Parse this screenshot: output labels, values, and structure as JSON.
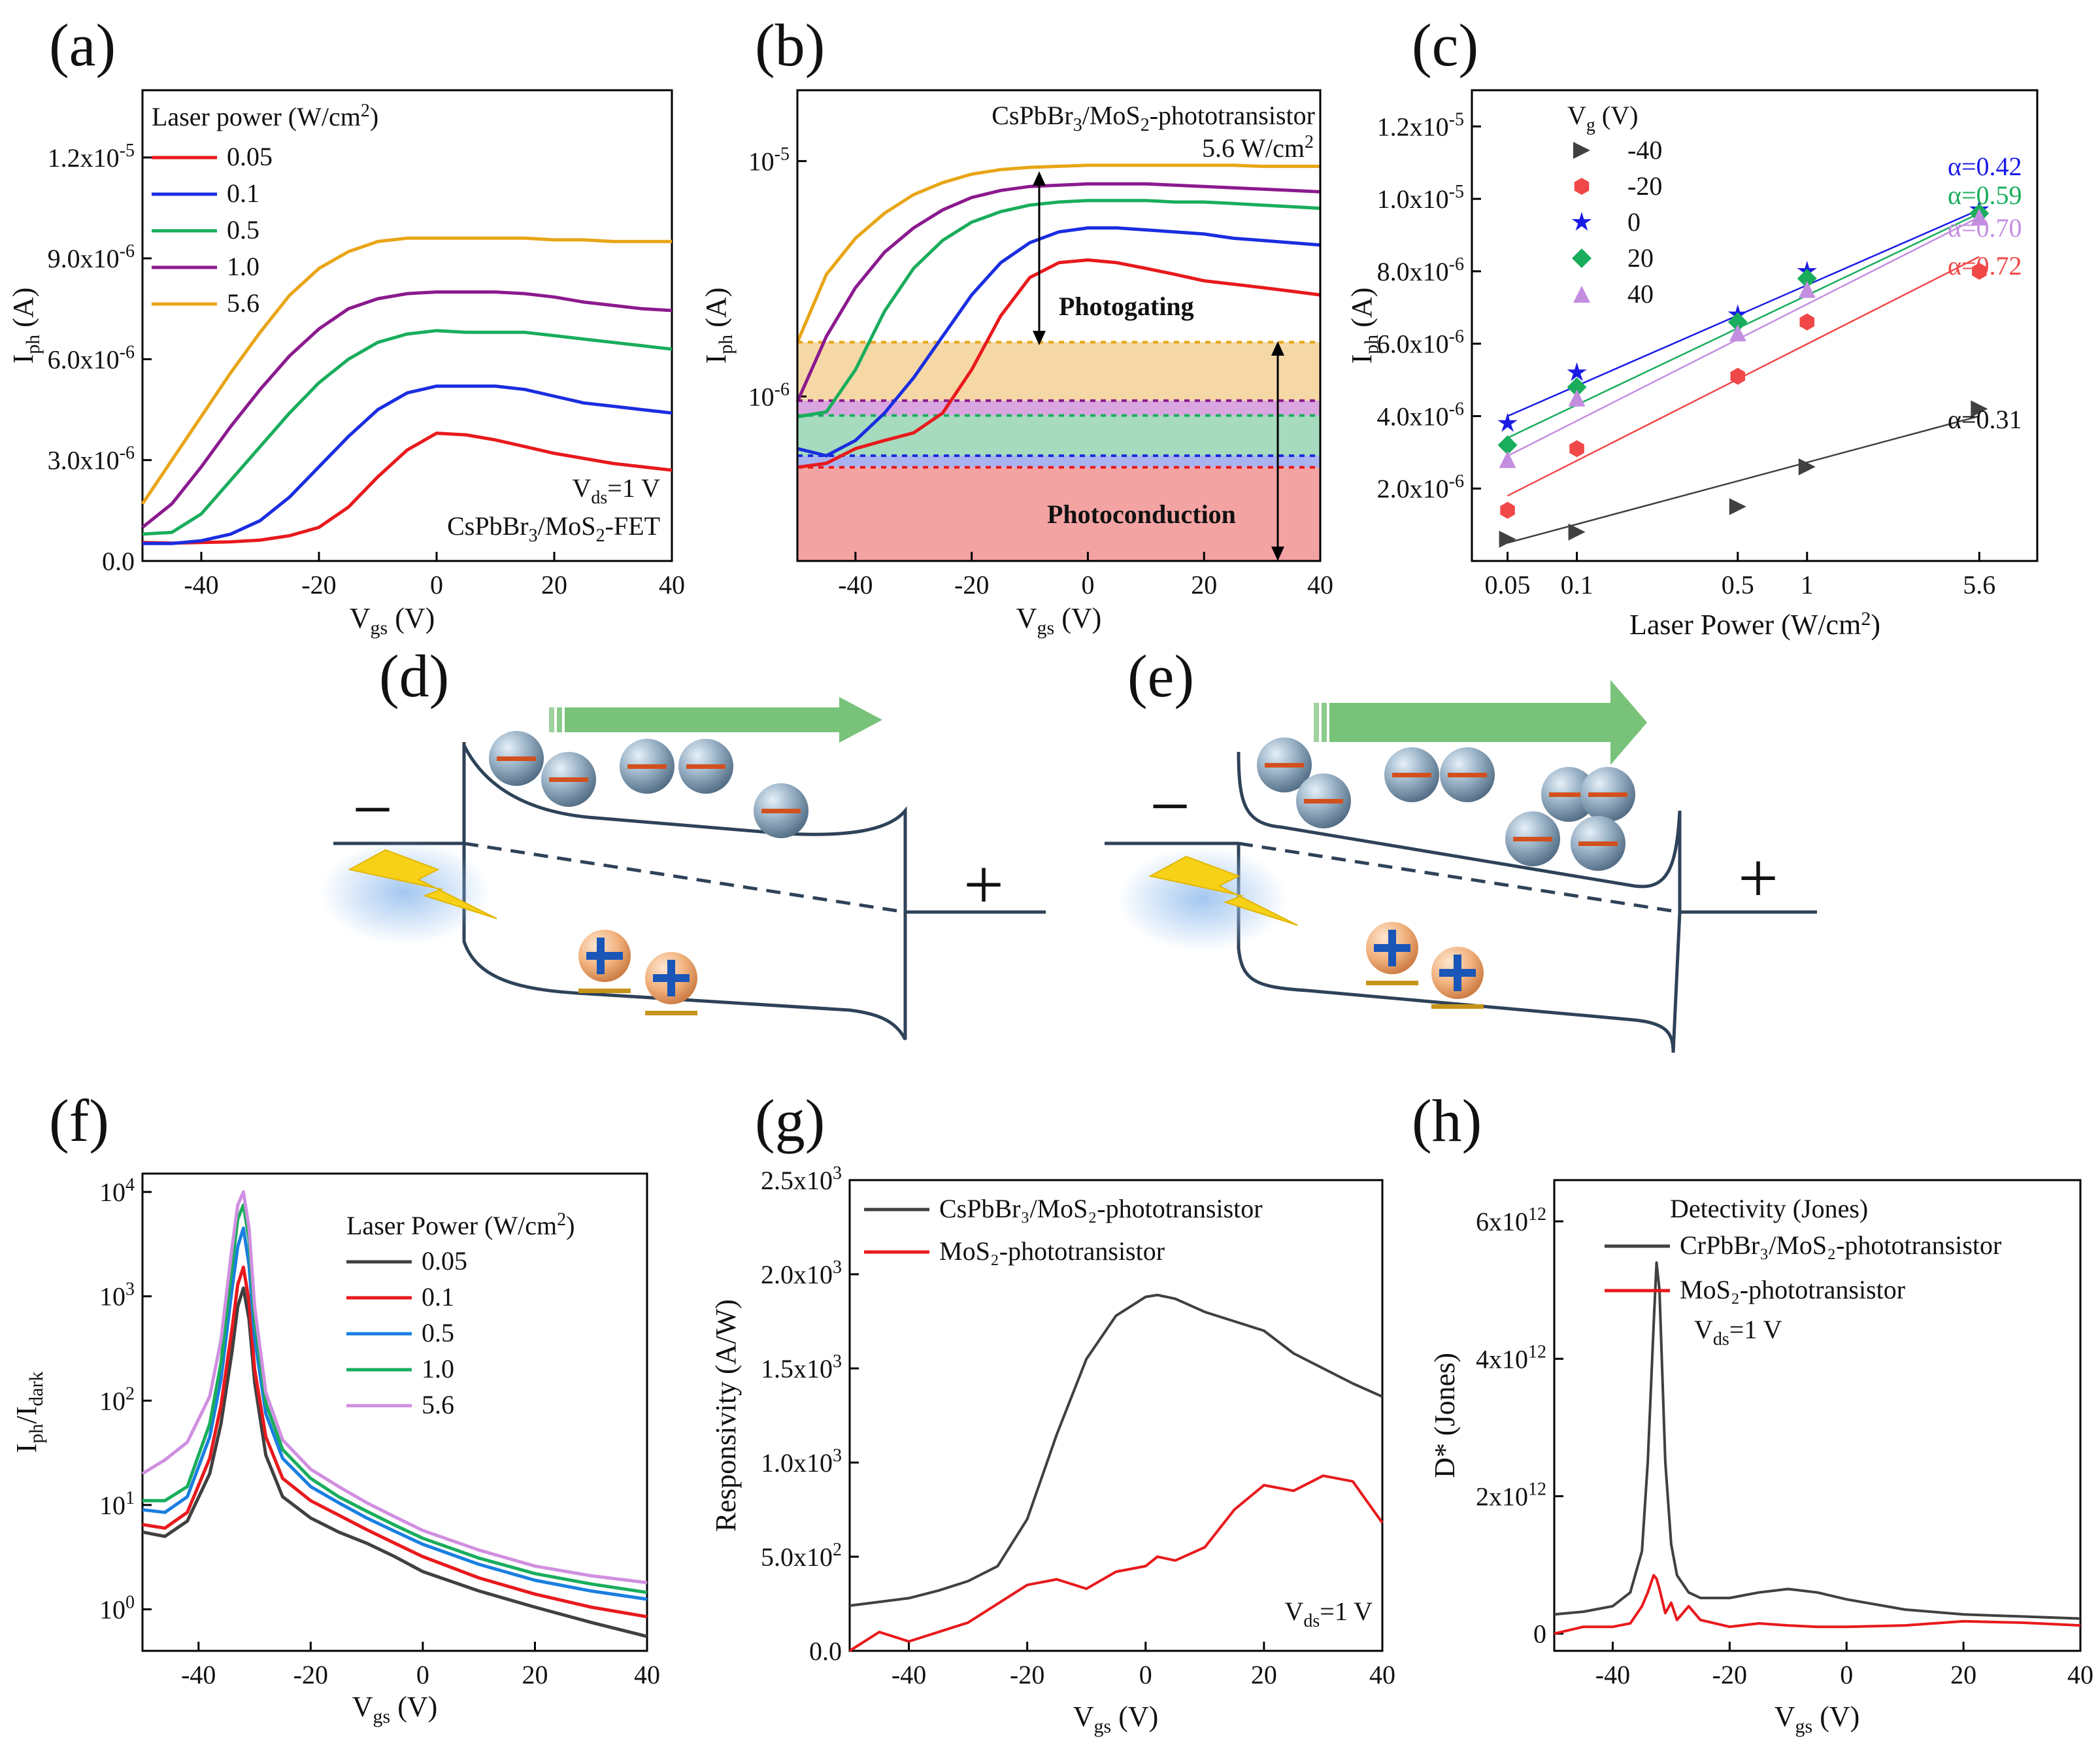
{
  "figure": {
    "panel_labels": [
      "(a)",
      "(b)",
      "(c)",
      "(d)",
      "(e)",
      "(f)",
      "(g)",
      "(h)"
    ]
  },
  "chart_data": [
    {
      "id": "a",
      "type": "line",
      "title": "",
      "xlabel": "Vgs (V)",
      "ylabel": "Iph (A)",
      "xlim": [
        -50,
        40
      ],
      "ylim": [
        0,
        1.4e-05
      ],
      "x_ticks": [
        "-40",
        "-20",
        "0",
        "20",
        "40"
      ],
      "y_ticks": [
        "0.0",
        "3.0x10-6",
        "6.0x10-6",
        "9.0x10-6",
        "1.2x10-5"
      ],
      "legend_title": "Laser power (W/cm2)",
      "legend_position": "top-left",
      "annotations": [
        "Vds=1 V",
        "CsPbBr3/MoS2-FET"
      ],
      "x": [
        -50,
        -45,
        -40,
        -35,
        -30,
        -25,
        -20,
        -15,
        -10,
        -5,
        0,
        5,
        10,
        15,
        20,
        25,
        30,
        35,
        40
      ],
      "series": [
        {
          "name": "0.05",
          "color": "#e8191c",
          "values": [
            5.5e-07,
            5.3e-07,
            5.5e-07,
            5.7e-07,
            6.2e-07,
            7.5e-07,
            1e-06,
            1.6e-06,
            2.5e-06,
            3.3e-06,
            3.8e-06,
            3.75e-06,
            3.6e-06,
            3.4e-06,
            3.2e-06,
            3.05e-06,
            2.9e-06,
            2.8e-06,
            2.7e-06
          ]
        },
        {
          "name": "0.1",
          "color": "#1a2de0",
          "values": [
            5.2e-07,
            5.2e-07,
            6e-07,
            8e-07,
            1.2e-06,
            1.9e-06,
            2.8e-06,
            3.7e-06,
            4.5e-06,
            5e-06,
            5.2e-06,
            5.2e-06,
            5.2e-06,
            5.1e-06,
            4.9e-06,
            4.7e-06,
            4.6e-06,
            4.5e-06,
            4.4e-06
          ]
        },
        {
          "name": "0.5",
          "color": "#19ad5c",
          "values": [
            8e-07,
            8.5e-07,
            1.4e-06,
            2.4e-06,
            3.4e-06,
            4.4e-06,
            5.3e-06,
            6e-06,
            6.5e-06,
            6.75e-06,
            6.85e-06,
            6.8e-06,
            6.8e-06,
            6.8e-06,
            6.7e-06,
            6.6e-06,
            6.5e-06,
            6.4e-06,
            6.3e-06
          ]
        },
        {
          "name": "1.0",
          "color": "#8b1a8e",
          "values": [
            1e-06,
            1.7e-06,
            2.8e-06,
            4e-06,
            5.1e-06,
            6.1e-06,
            6.9e-06,
            7.5e-06,
            7.8e-06,
            7.95e-06,
            8e-06,
            8e-06,
            8e-06,
            7.95e-06,
            7.85e-06,
            7.7e-06,
            7.6e-06,
            7.5e-06,
            7.45e-06
          ]
        },
        {
          "name": "5.6",
          "color": "#e8a516",
          "values": [
            1.7e-06,
            3e-06,
            4.3e-06,
            5.6e-06,
            6.8e-06,
            7.9e-06,
            8.7e-06,
            9.2e-06,
            9.5e-06,
            9.6e-06,
            9.6e-06,
            9.6e-06,
            9.6e-06,
            9.6e-06,
            9.55e-06,
            9.55e-06,
            9.5e-06,
            9.5e-06,
            9.5e-06
          ]
        }
      ]
    },
    {
      "id": "b",
      "type": "line",
      "title": "",
      "xlabel": "Vgs (V)",
      "ylabel": "Iph (A)",
      "yscale": "log",
      "xlim": [
        -50,
        40
      ],
      "ylim": [
        2e-07,
        2e-05
      ],
      "x_ticks": [
        "-40",
        "-20",
        "0",
        "20",
        "40"
      ],
      "y_ticks": [
        "10-6",
        "10-5"
      ],
      "annotations": [
        "CsPbBr3/MoS2-phototransistor",
        "5.6 W/cm2",
        "Photogating",
        "Photoconduction"
      ],
      "x": [
        -50,
        -45,
        -40,
        -35,
        -30,
        -25,
        -20,
        -15,
        -10,
        -5,
        0,
        5,
        10,
        15,
        20,
        25,
        30,
        35,
        40
      ],
      "series": [
        {
          "name": "0.05",
          "color": "#e8191c",
          "values": [
            5e-07,
            5.2e-07,
            6e-07,
            6.5e-07,
            7e-07,
            8.5e-07,
            1.3e-06,
            2.2e-06,
            3.2e-06,
            3.7e-06,
            3.8e-06,
            3.7e-06,
            3.5e-06,
            3.3e-06,
            3.1e-06,
            3e-06,
            2.9e-06,
            2.8e-06,
            2.7e-06
          ]
        },
        {
          "name": "0.1",
          "color": "#1a2de0",
          "values": [
            6e-07,
            5.6e-07,
            6.5e-07,
            8.5e-07,
            1.2e-06,
            1.8e-06,
            2.7e-06,
            3.7e-06,
            4.5e-06,
            5e-06,
            5.2e-06,
            5.2e-06,
            5.1e-06,
            5e-06,
            4.9e-06,
            4.7e-06,
            4.6e-06,
            4.5e-06,
            4.4e-06
          ]
        },
        {
          "name": "0.5",
          "color": "#19ad5c",
          "values": [
            8.2e-07,
            8.6e-07,
            1.3e-06,
            2.3e-06,
            3.5e-06,
            4.6e-06,
            5.5e-06,
            6.1e-06,
            6.5e-06,
            6.7e-06,
            6.8e-06,
            6.8e-06,
            6.8e-06,
            6.7e-06,
            6.7e-06,
            6.6e-06,
            6.5e-06,
            6.4e-06,
            6.3e-06
          ]
        },
        {
          "name": "1.0",
          "color": "#8b1a8e",
          "values": [
            9.5e-07,
            1.8e-06,
            2.9e-06,
            4.1e-06,
            5.2e-06,
            6.2e-06,
            7e-06,
            7.5e-06,
            7.8e-06,
            7.9e-06,
            8e-06,
            8e-06,
            8e-06,
            7.9e-06,
            7.8e-06,
            7.7e-06,
            7.6e-06,
            7.5e-06,
            7.4e-06
          ]
        },
        {
          "name": "5.6",
          "color": "#e8a516",
          "values": [
            1.7e-06,
            3.3e-06,
            4.7e-06,
            6e-06,
            7.2e-06,
            8.1e-06,
            8.8e-06,
            9.2e-06,
            9.4e-06,
            9.5e-06,
            9.6e-06,
            9.6e-06,
            9.6e-06,
            9.6e-06,
            9.6e-06,
            9.6e-06,
            9.5e-06,
            9.5e-06,
            9.5e-06
          ]
        }
      ],
      "bands": [
        {
          "name": "photoconduction",
          "from": 2e-07,
          "to": 5e-07,
          "color": "#f4a3a3"
        },
        {
          "name": "0.1 band",
          "from": 5e-07,
          "to": 5.6e-07,
          "color": "#a9b3ef"
        },
        {
          "name": "0.5 band",
          "from": 5.6e-07,
          "to": 8.3e-07,
          "color": "#a6dbbf"
        },
        {
          "name": "1.0 band",
          "from": 8.3e-07,
          "to": 9.6e-07,
          "color": "#d9a6df"
        },
        {
          "name": "5.6 band",
          "from": 9.6e-07,
          "to": 1.7e-06,
          "color": "#f6d8a6"
        }
      ]
    },
    {
      "id": "c",
      "type": "scatter",
      "title": "",
      "xlabel": "Laser Power (W/cm2)",
      "ylabel": "Iph (A)",
      "xscale": "log",
      "xlim": [
        0.035,
        10
      ],
      "ylim": [
        0,
        1.3e-05
      ],
      "x_ticks": [
        "0.05",
        "0.1",
        "0.5",
        "1",
        "5.6"
      ],
      "y_ticks": [
        "2.0x10-6",
        "4.0x10-6",
        "6.0x10-6",
        "8.0x10-6",
        "1.0x10-5",
        "1.2x10-5"
      ],
      "legend_title": "Vg (V)",
      "legend_position": "top-left",
      "x": [
        0.05,
        0.1,
        0.5,
        1,
        5.6
      ],
      "series": [
        {
          "name": "-40",
          "color": "#404040",
          "marker": "triangle-right",
          "alpha_label": "α=0.31",
          "values": [
            6e-07,
            8e-07,
            1.5e-06,
            2.6e-06,
            4.2e-06
          ]
        },
        {
          "name": "-20",
          "color": "#f04848",
          "marker": "hexagon",
          "alpha_label": "α=0.72",
          "values": [
            1.4e-06,
            3.1e-06,
            5.1e-06,
            6.6e-06,
            8e-06
          ]
        },
        {
          "name": "0",
          "color": "#1a1ae6",
          "marker": "star",
          "alpha_label": "α=0.42",
          "values": [
            3.8e-06,
            5.2e-06,
            6.8e-06,
            8e-06,
            9.7e-06
          ]
        },
        {
          "name": "20",
          "color": "#19ad5c",
          "marker": "diamond",
          "alpha_label": "α=0.59",
          "values": [
            3.2e-06,
            4.8e-06,
            6.6e-06,
            7.8e-06,
            9.6e-06
          ]
        },
        {
          "name": "40",
          "color": "#c48ee0",
          "marker": "triangle-up",
          "alpha_label": "α=0.70",
          "values": [
            2.8e-06,
            4.5e-06,
            6.3e-06,
            7.5e-06,
            9.5e-06
          ]
        }
      ],
      "fit_lines": [
        {
          "series": "-40",
          "y_at_x0": 5e-07,
          "y_at_x1": 4e-06
        },
        {
          "series": "-20",
          "y_at_x0": 1.8e-06,
          "y_at_x1": 8.4e-06
        },
        {
          "series": "0",
          "y_at_x0": 4e-06,
          "y_at_x1": 9.7e-06
        },
        {
          "series": "20",
          "y_at_x0": 3.4e-06,
          "y_at_x1": 9.6e-06
        },
        {
          "series": "40",
          "y_at_x0": 2.9e-06,
          "y_at_x1": 9.5e-06
        }
      ]
    },
    {
      "id": "f",
      "type": "line",
      "title": "",
      "xlabel": "Vgs (V)",
      "ylabel": "Iph/Idark",
      "yscale": "log",
      "xlim": [
        -50,
        40
      ],
      "ylim": [
        0.4,
        15000
      ],
      "x_ticks": [
        "-40",
        "-20",
        "0",
        "20",
        "40"
      ],
      "y_ticks": [
        "100",
        "101",
        "102",
        "103",
        "104"
      ],
      "legend_title": "Laser Power (W/cm2)",
      "legend_position": "top-right",
      "x": [
        -50,
        -46,
        -42,
        -38,
        -36,
        -34,
        -33,
        -32,
        -31,
        -30,
        -28,
        -25,
        -20,
        -15,
        -10,
        -5,
        0,
        10,
        20,
        30,
        40
      ],
      "series": [
        {
          "name": "0.05",
          "color": "#404040",
          "values": [
            5.5,
            5.0,
            7.0,
            20,
            60,
            300,
            800,
            1200,
            600,
            150,
            30,
            12,
            7.5,
            5.5,
            4.3,
            3.2,
            2.3,
            1.5,
            1.05,
            0.75,
            0.55
          ]
        },
        {
          "name": "0.1",
          "color": "#e8191c",
          "values": [
            6.5,
            6.0,
            8.5,
            28,
            90,
            500,
            1300,
            1900,
            900,
            200,
            45,
            18,
            11,
            8,
            5.8,
            4.3,
            3.2,
            2.0,
            1.4,
            1.05,
            0.85
          ]
        },
        {
          "name": "0.5",
          "color": "#1a7fe0",
          "values": [
            9.0,
            8.5,
            12,
            45,
            160,
            1200,
            3000,
            4500,
            2000,
            400,
            75,
            28,
            15,
            10.5,
            7.5,
            5.6,
            4.2,
            2.7,
            1.9,
            1.5,
            1.25
          ]
        },
        {
          "name": "1.0",
          "color": "#19ad5c",
          "values": [
            11,
            11,
            15,
            60,
            230,
            2000,
            5500,
            7500,
            3500,
            600,
            95,
            34,
            18,
            12,
            8.7,
            6.4,
            4.8,
            3.1,
            2.2,
            1.75,
            1.45
          ]
        },
        {
          "name": "5.6",
          "color": "#d08fe0",
          "values": [
            20,
            27,
            40,
            110,
            380,
            3000,
            7500,
            10000,
            4500,
            800,
            120,
            42,
            22,
            15,
            10.5,
            7.7,
            5.7,
            3.7,
            2.6,
            2.1,
            1.8
          ]
        }
      ]
    },
    {
      "id": "g",
      "type": "line",
      "title": "",
      "xlabel": "Vgs (V)",
      "ylabel": "Responsivity (A/W)",
      "xlim": [
        -50,
        40
      ],
      "ylim": [
        0,
        2500
      ],
      "x_ticks": [
        "-40",
        "-20",
        "0",
        "20",
        "40"
      ],
      "y_ticks": [
        "0.0",
        "5.0x102",
        "1.0x103",
        "1.5x103",
        "2.0x103",
        "2.5x103"
      ],
      "legend_position": "top-left",
      "annotations": [
        "Vds=1 V"
      ],
      "x": [
        -50,
        -45,
        -40,
        -35,
        -30,
        -25,
        -20,
        -15,
        -10,
        -5,
        0,
        2,
        5,
        10,
        15,
        20,
        25,
        30,
        35,
        40
      ],
      "series": [
        {
          "name": "CsPbBr3/MoS2-phototransistor",
          "color": "#404040",
          "values": [
            240,
            260,
            280,
            320,
            370,
            450,
            700,
            1150,
            1550,
            1780,
            1880,
            1890,
            1870,
            1800,
            1750,
            1700,
            1580,
            1500,
            1420,
            1350
          ]
        },
        {
          "name": "MoS2-phototransistor",
          "color": "#e8191c",
          "values": [
            0,
            100,
            50,
            100,
            150,
            250,
            350,
            380,
            330,
            420,
            450,
            500,
            480,
            550,
            750,
            880,
            850,
            930,
            900,
            680
          ]
        }
      ]
    },
    {
      "id": "h",
      "type": "line",
      "title": "",
      "xlabel": "Vgs (V)",
      "ylabel": "D* (Jones)",
      "xlim": [
        -50,
        40
      ],
      "ylim": [
        -250000000000.0,
        6600000000000.0
      ],
      "x_ticks": [
        "-40",
        "-20",
        "0",
        "20",
        "40"
      ],
      "y_ticks": [
        "0",
        "2x1012",
        "4x1012",
        "6x1012"
      ],
      "legend_title": "Detectivity (Jones)",
      "legend_position": "top-right",
      "annotations": [
        "Vds=1 V"
      ],
      "x": [
        -50,
        -45,
        -40,
        -37,
        -35,
        -34,
        -33,
        -32.5,
        -32,
        -31,
        -30,
        -29,
        -27,
        -25,
        -20,
        -15,
        -10,
        -5,
        0,
        10,
        20,
        30,
        40
      ],
      "series": [
        {
          "name": "CrPbBr3/MoS2-phototransistor",
          "color": "#404040",
          "values": [
            280000000000.0,
            320000000000.0,
            400000000000.0,
            600000000000.0,
            1200000000000.0,
            2500000000000.0,
            4500000000000.0,
            5400000000000.0,
            5000000000000.0,
            2500000000000.0,
            1300000000000.0,
            850000000000.0,
            600000000000.0,
            520000000000.0,
            520000000000.0,
            600000000000.0,
            650000000000.0,
            600000000000.0,
            500000000000.0,
            350000000000.0,
            280000000000.0,
            250000000000.0,
            220000000000.0
          ]
        },
        {
          "name": "MoS2-phototransistor",
          "color": "#e8191c",
          "values": [
            0,
            100000000000.0,
            100000000000.0,
            150000000000.0,
            400000000000.0,
            600000000000.0,
            850000000000.0,
            800000000000.0,
            650000000000.0,
            300000000000.0,
            450000000000.0,
            200000000000.0,
            400000000000.0,
            200000000000.0,
            100000000000.0,
            150000000000.0,
            120000000000.0,
            100000000000.0,
            100000000000.0,
            120000000000.0,
            180000000000.0,
            160000000000.0,
            120000000000.0
          ]
        }
      ]
    }
  ],
  "diagrams": {
    "d": {
      "minus_label": "−",
      "plus_label": "+"
    },
    "e": {
      "minus_label": "−",
      "plus_label": "+"
    }
  }
}
